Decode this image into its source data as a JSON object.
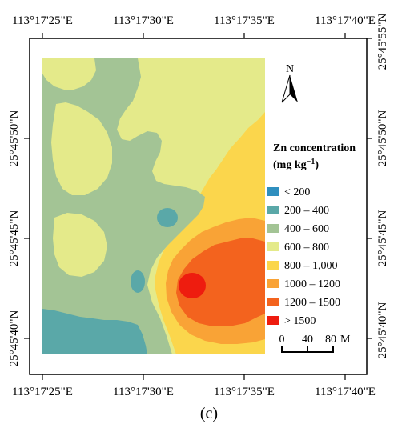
{
  "figure": {
    "caption": "(c)"
  },
  "axes": {
    "top_ticks": [
      "113°17'25\"E",
      "113°17'30\"E",
      "113°17'35\"E",
      "113°17'40\"E"
    ],
    "bottom_ticks": [
      "113°17'25\"E",
      "113°17'30\"E",
      "113°17'35\"E",
      "113°17'40\"E"
    ],
    "left_ticks": [
      "25°45'50\"N",
      "25°45'45\"N",
      "25°45'40\"N"
    ],
    "right_ticks": [
      "25°45'55\"N",
      "25°45'50\"N",
      "25°45'45\"N",
      "25°45'40\"N"
    ]
  },
  "north_arrow": {
    "label": "N",
    "icon": "north-arrow-icon"
  },
  "legend": {
    "title_line1": "Zn concentration",
    "title_line2_prefix": "(mg kg",
    "title_line2_sup": "−1",
    "title_line2_suffix": ")",
    "items": [
      {
        "label": "< 200",
        "color": "#2f8fbf"
      },
      {
        "label": "200 – 400",
        "color": "#5aa8a8"
      },
      {
        "label": "400 – 600",
        "color": "#a3c495"
      },
      {
        "label": "600 – 800",
        "color": "#e4ea8a"
      },
      {
        "label": "800 – 1,000",
        "color": "#fbd64c"
      },
      {
        "label": "1000 – 1200",
        "color": "#f9a336"
      },
      {
        "label": "1200 – 1500",
        "color": "#f3631e"
      },
      {
        "label": "> 1500",
        "color": "#ee1c0f"
      }
    ]
  },
  "scale_bar": {
    "ticks": [
      "0",
      "40",
      "80"
    ],
    "unit": "M"
  }
}
